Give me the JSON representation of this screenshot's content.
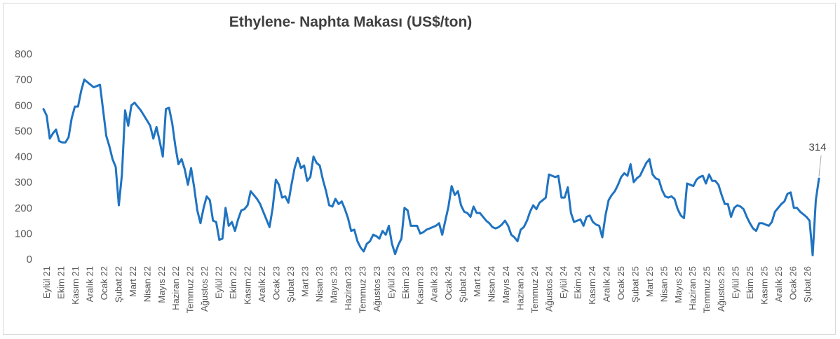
{
  "chart_data": {
    "type": "line",
    "title": "Ethylene- Naphta Makası (US$/ton)",
    "xlabel": "",
    "ylabel": "",
    "ylim": [
      0,
      800
    ],
    "yticks": [
      "0",
      "100",
      "200",
      "300",
      "400",
      "500",
      "600",
      "700",
      "800"
    ],
    "grid": false,
    "legend": "none",
    "color": "#1f73c1",
    "x_tick_labels": [
      "Eylül 21",
      "Ekim 21",
      "Kasım 21",
      "Aralık 21",
      "Ocak 22",
      "Şubat 22",
      "Mart 22",
      "Nisan 22",
      "Mayıs 22",
      "Haziran 22",
      "Temmuz 22",
      "Ağustos 22",
      "Eylül 22",
      "Ekim 22",
      "Kasım 22",
      "Aralık 22",
      "Ocak 23",
      "Şubat 23",
      "Mart 23",
      "Nisan 23",
      "Mayıs 23",
      "Haziran 23",
      "Temmuz 23",
      "Ağustos 23",
      "Eylül 23",
      "Ekim 23",
      "Kasım 23",
      "Aralık 23",
      "Ocak 24",
      "Şubat 24",
      "Mart 24",
      "Nisan 24",
      "Mayıs 24",
      "Haziran 24",
      "Temmuz 24",
      "Ağustos 24",
      "Eylül 24",
      "Ekim 24",
      "Kasım 24",
      "Aralık 24",
      "Ocak 25",
      "Şubat 25",
      "Mart 25",
      "Nisan 25",
      "Mayıs 25",
      "Haziran 25",
      "Temmuz 25",
      "Ağustos 25",
      "Eylül 25",
      "Ekim 25",
      "Kasım 25",
      "Aralık 25",
      "Ocak 26",
      "Şubat 26"
    ],
    "values": [
      585,
      560,
      470,
      490,
      505,
      460,
      455,
      455,
      475,
      550,
      595,
      595,
      655,
      700,
      690,
      680,
      670,
      675,
      680,
      580,
      480,
      440,
      390,
      360,
      210,
      330,
      580,
      520,
      600,
      610,
      595,
      580,
      560,
      540,
      520,
      470,
      515,
      460,
      400,
      585,
      590,
      530,
      440,
      370,
      390,
      350,
      290,
      355,
      280,
      190,
      140,
      200,
      245,
      230,
      150,
      145,
      75,
      80,
      200,
      130,
      145,
      110,
      155,
      190,
      195,
      210,
      265,
      250,
      235,
      215,
      185,
      155,
      125,
      200,
      310,
      290,
      240,
      245,
      220,
      290,
      355,
      395,
      355,
      365,
      305,
      320,
      400,
      375,
      365,
      310,
      265,
      210,
      205,
      235,
      215,
      225,
      195,
      160,
      110,
      115,
      70,
      45,
      30,
      60,
      70,
      95,
      90,
      80,
      110,
      95,
      130,
      60,
      20,
      55,
      80,
      200,
      190,
      130,
      130,
      130,
      100,
      105,
      115,
      120,
      125,
      130,
      140,
      95,
      150,
      205,
      285,
      250,
      265,
      210,
      185,
      180,
      165,
      205,
      180,
      180,
      165,
      150,
      140,
      125,
      120,
      125,
      135,
      150,
      130,
      95,
      85,
      70,
      115,
      125,
      150,
      185,
      210,
      195,
      220,
      230,
      240,
      330,
      325,
      320,
      325,
      240,
      240,
      280,
      180,
      145,
      150,
      155,
      130,
      165,
      170,
      145,
      135,
      130,
      85,
      170,
      230,
      250,
      265,
      290,
      320,
      335,
      325,
      370,
      300,
      315,
      325,
      350,
      375,
      390,
      330,
      315,
      310,
      270,
      245,
      240,
      245,
      235,
      195,
      170,
      160,
      295,
      290,
      285,
      310,
      320,
      325,
      295,
      330,
      305,
      305,
      290,
      250,
      215,
      215,
      165,
      200,
      210,
      205,
      195,
      165,
      140,
      120,
      110,
      140,
      140,
      135,
      130,
      145,
      185,
      200,
      215,
      225,
      255,
      260,
      200,
      200,
      185,
      175,
      165,
      150,
      15,
      230,
      314
    ],
    "data_label": "314"
  }
}
